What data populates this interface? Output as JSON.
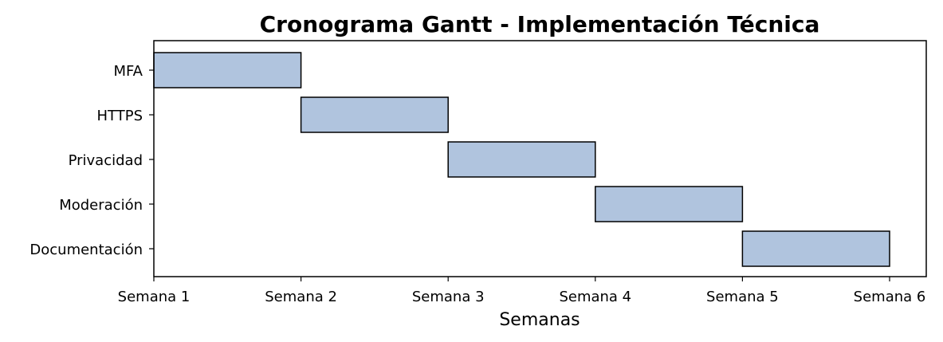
{
  "chart_data": {
    "type": "bar",
    "orientation": "horizontal-gantt",
    "title": "Cronograma Gantt - Implementación Técnica",
    "xlabel": "Semanas",
    "ylabel": "",
    "x_ticks": [
      "Semana 1",
      "Semana 2",
      "Semana 3",
      "Semana 4",
      "Semana 5",
      "Semana 6"
    ],
    "xlim": [
      1,
      6.25
    ],
    "tasks": [
      {
        "name": "MFA",
        "start": 1,
        "end": 2
      },
      {
        "name": "HTTPS",
        "start": 2,
        "end": 3
      },
      {
        "name": "Privacidad",
        "start": 3,
        "end": 4
      },
      {
        "name": "Moderación",
        "start": 4,
        "end": 5
      },
      {
        "name": "Documentación",
        "start": 5,
        "end": 6
      }
    ],
    "bar_color": "#b0c4de",
    "edge_color": "#000000",
    "grid": false,
    "legend": "none"
  }
}
